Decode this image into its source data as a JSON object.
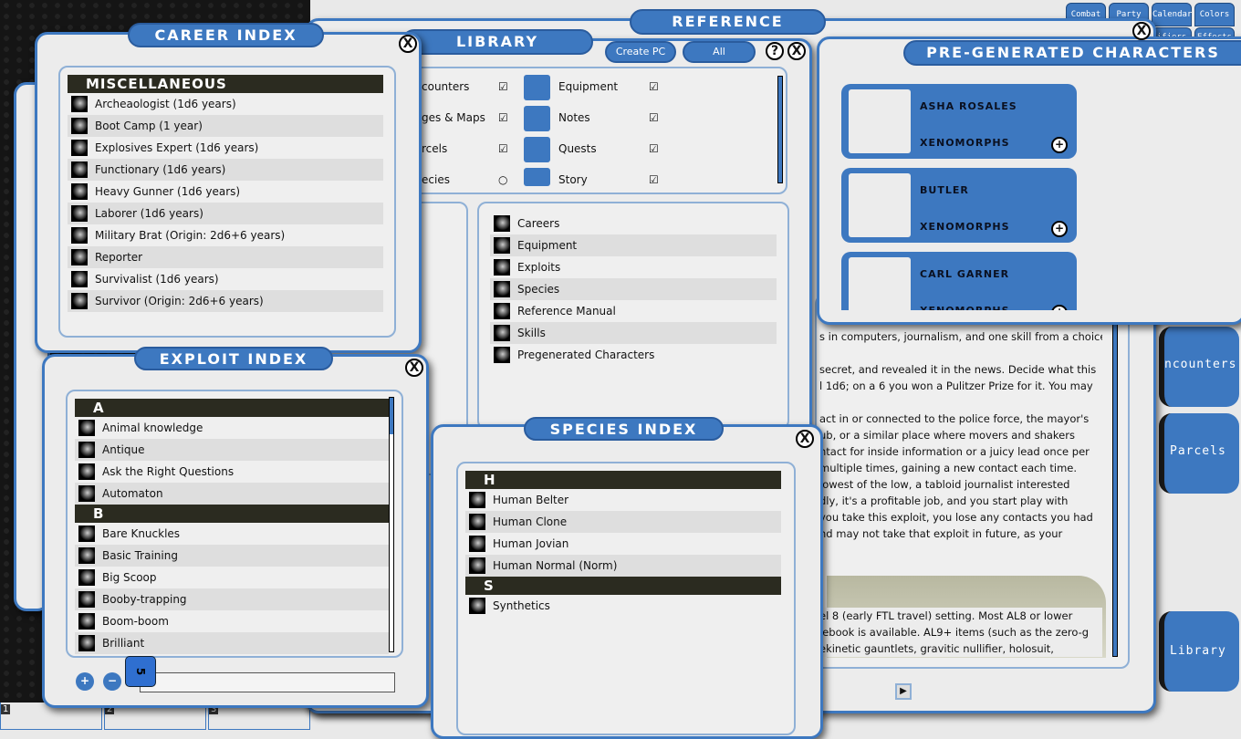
{
  "top_buttons": [
    "Combat",
    "Party",
    "Calendar",
    "Colors"
  ],
  "top_buttons_row2": [
    "ifiers",
    "Effects"
  ],
  "side_tabs": [
    "ncounters",
    "Parcels",
    "Library"
  ],
  "reference": {
    "title": "REFERENCE",
    "text": [
      "s in computers, journalism, and one skill from a choice",
      "",
      "secret, and revealed it in the news. Decide what this",
      "l 1d6; on a 6 you won a Pulitzer Prize for it. You may",
      "",
      "act in or connected to the police force, the mayor's",
      "ub, or a similar place where movers and shakers",
      "ntact for inside information or a juicy lead once per",
      " multiple times, gaining a new contact each time.",
      " lowest of the low, a tabloid journalist interested",
      "dly, it's a profitable job, and you start play with",
      " you take this exploit, you lose any contacts you had",
      "nd may not take that exploit in future, as your"
    ],
    "text2": [
      "el 8 (early FTL travel) setting. Most AL8 or lower",
      "lebook is available. AL9+ items (such as the zero-g",
      "ekinetic gauntlets, gravitic nullifier, holosuit,"
    ]
  },
  "library": {
    "title": "LIBRARY",
    "create_pc": "Create PC",
    "all": "All",
    "help": "?",
    "close": "X",
    "left_letter": "N",
    "modules_left": [
      {
        "label": "counters",
        "checked": true
      },
      {
        "label": "ges & Maps",
        "checked": true
      },
      {
        "label": "rcels",
        "checked": true
      },
      {
        "label": "ecies",
        "checked": false
      }
    ],
    "modules_right": [
      {
        "label": "Equipment",
        "checked": true
      },
      {
        "label": "Notes",
        "checked": true
      },
      {
        "label": "Quests",
        "checked": true
      },
      {
        "label": "Story",
        "checked": true
      }
    ],
    "entries": [
      "Careers",
      "Equipment",
      "Exploits",
      "Species",
      "Reference Manual",
      "Skills",
      "Pregenerated Characters"
    ]
  },
  "pregen": {
    "title": "PRE-GENERATED CHARACTERS",
    "characters": [
      {
        "name": "ASHA ROSALES",
        "campaign": "XENOMORPHS"
      },
      {
        "name": "BUTLER",
        "campaign": "XENOMORPHS"
      },
      {
        "name": "CARL GARNER",
        "campaign": "XENOMORPHS"
      }
    ]
  },
  "career": {
    "title": "CAREER INDEX",
    "header": "MISCELLANEOUS",
    "items": [
      "Archeaologist (1d6 years)",
      "Boot Camp (1 year)",
      "Explosives Expert (1d6 years)",
      "Functionary (1d6 years)",
      "Heavy Gunner (1d6 years)",
      "Laborer (1d6 years)",
      "Military Brat (Origin: 2d6+6 years)",
      "Reporter",
      "Survivalist (1d6 years)",
      "Survivor (Origin: 2d6+6 years)"
    ]
  },
  "exploit": {
    "title": "EXPLOIT INDEX",
    "groups": [
      {
        "letter": "A",
        "items": [
          "Animal knowledge",
          "Antique",
          "Ask the Right Questions",
          "Automaton"
        ]
      },
      {
        "letter": "B",
        "items": [
          "Bare Knuckles",
          "Basic Training",
          "Big Scoop",
          "Booby-trapping",
          "Boom-boom",
          "Brilliant"
        ]
      }
    ],
    "die": "5",
    "search_value": ""
  },
  "species": {
    "title": "SPECIES INDEX",
    "groups": [
      {
        "letter": "H",
        "items": [
          "Human Belter",
          "Human Clone",
          "Human Jovian",
          "Human Normal (Norm)"
        ]
      },
      {
        "letter": "S",
        "items": [
          "Synthetics"
        ]
      }
    ]
  },
  "hotbar": [
    "1",
    "2",
    "3"
  ],
  "close_label": "X",
  "colors": {
    "accent": "#3d78c0",
    "header": "#2b2b20"
  }
}
